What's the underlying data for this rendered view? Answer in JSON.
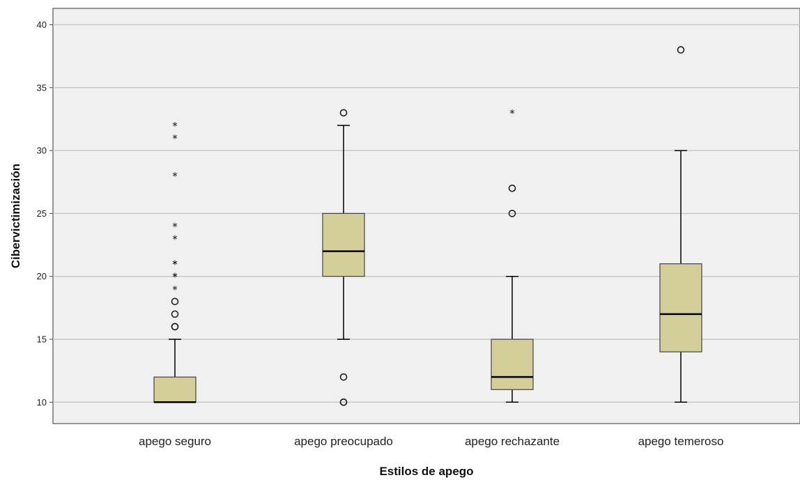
{
  "chart_data": {
    "type": "boxplot",
    "xlabel": "Estilos de apego",
    "ylabel": "Cibervictimización",
    "ylim": [
      8.3,
      41.3
    ],
    "yticks": [
      10,
      15,
      20,
      25,
      30,
      35,
      40
    ],
    "grid": true,
    "colors": {
      "box_fill": "#d4ce9b",
      "plot_bg": "#f0f0f0",
      "grid": "#c8c8c8"
    },
    "categories": [
      "apego seguro",
      "apego preocupado",
      "apego rechazante",
      "apego temeroso"
    ],
    "boxes": [
      {
        "name": "apego seguro",
        "whisker_low": 10,
        "q1": 10,
        "median": 10,
        "q3": 12,
        "whisker_high": 15,
        "outliers": [
          16,
          16,
          17,
          18
        ],
        "extremes": [
          19,
          20,
          20,
          21,
          21,
          23,
          24,
          28,
          31,
          32
        ]
      },
      {
        "name": "apego preocupado",
        "whisker_low": 15,
        "q1": 20,
        "median": 22,
        "q3": 25,
        "whisker_high": 32,
        "outliers": [
          10,
          10,
          12,
          33
        ],
        "extremes": []
      },
      {
        "name": "apego rechazante",
        "whisker_low": 10,
        "q1": 11,
        "median": 12,
        "q3": 15,
        "whisker_high": 20,
        "outliers": [
          25,
          27
        ],
        "extremes": [
          33
        ]
      },
      {
        "name": "apego temeroso",
        "whisker_low": 10,
        "q1": 14,
        "median": 17,
        "q3": 21,
        "whisker_high": 30,
        "outliers": [
          38
        ],
        "extremes": []
      }
    ]
  }
}
